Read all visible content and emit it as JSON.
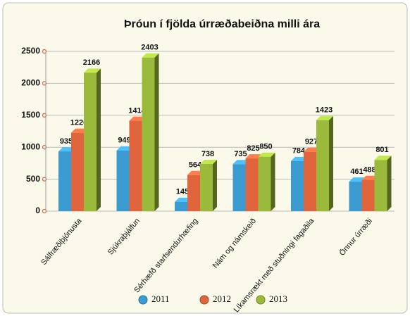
{
  "chart_data": {
    "type": "bar",
    "title": "Þróun í fjölda úrræðabeiðna milli ára",
    "categories": [
      "Sálfræðiþjónusta",
      "Sjúkraþjálfun",
      "Sérhæfð starfsendurhæfing",
      "Nám og námskeið",
      "Líkamsrækt með stuðningi fagaðila",
      "Önnur úrræði"
    ],
    "series": [
      {
        "name": "2011",
        "color": "#3b9bd1",
        "values": [
          935,
          949,
          145,
          735,
          784,
          461
        ]
      },
      {
        "name": "2012",
        "color": "#e0643c",
        "values": [
          1226,
          1414,
          564,
          825,
          927,
          488
        ]
      },
      {
        "name": "2013",
        "color": "#9bba3c",
        "values": [
          2166,
          2403,
          738,
          850,
          1423,
          801
        ]
      }
    ],
    "ylim": [
      0,
      2500
    ],
    "yticks": [
      0,
      500,
      1000,
      1500,
      2000,
      2500
    ],
    "grid": true,
    "legend": "bottom"
  }
}
